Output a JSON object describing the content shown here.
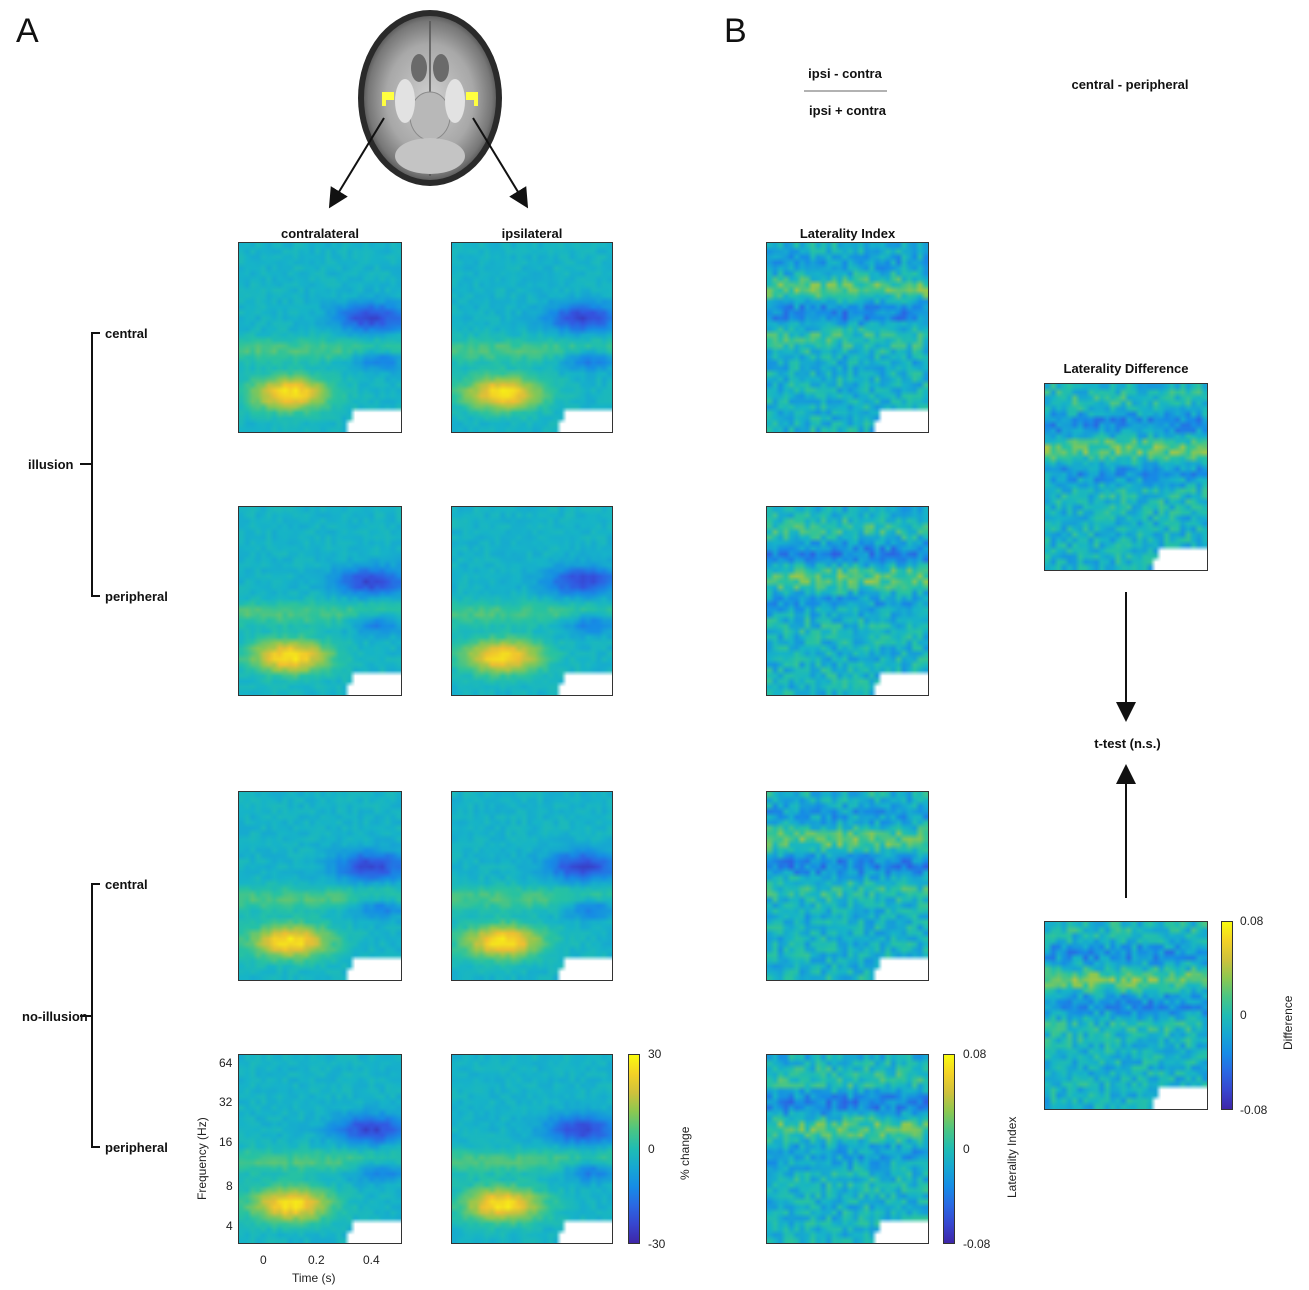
{
  "panels": {
    "a": "A",
    "b": "B"
  },
  "columns": {
    "contralateral": "contralateral",
    "ipsilateral": "ipsilateral",
    "laterality_index": "Laterality Index",
    "laterality_difference": "Laterality Difference"
  },
  "formula": {
    "numerator": "ipsi - contra",
    "denominator": "ipsi + contra"
  },
  "contrast": "central - peripheral",
  "ttest": "t-test (n.s.)",
  "groups": {
    "illusion": "illusion",
    "no_illusion": "no-illusion",
    "central": "central",
    "peripheral": "peripheral"
  },
  "axes": {
    "ylabel": "Frequency (Hz)",
    "xlabel": "Time (s)",
    "yticks": [
      "64",
      "32",
      "16",
      "8",
      "4"
    ],
    "xticks": [
      "0",
      "0.2",
      "0.4"
    ]
  },
  "colorbars": {
    "power": {
      "label": "% change",
      "max": "30",
      "mid": "0",
      "min": "-30"
    },
    "laterality": {
      "label": "Laterality Index",
      "max": "0.08",
      "mid": "0",
      "min": "-0.08"
    },
    "difference": {
      "label": "Difference",
      "max": "0.08",
      "mid": "0",
      "min": "-0.08"
    }
  },
  "colors": {
    "yellow": "#f9fb0e",
    "teal": "#1fb3b3",
    "blue": "#3e26a8",
    "roi": "#ffff40"
  }
}
